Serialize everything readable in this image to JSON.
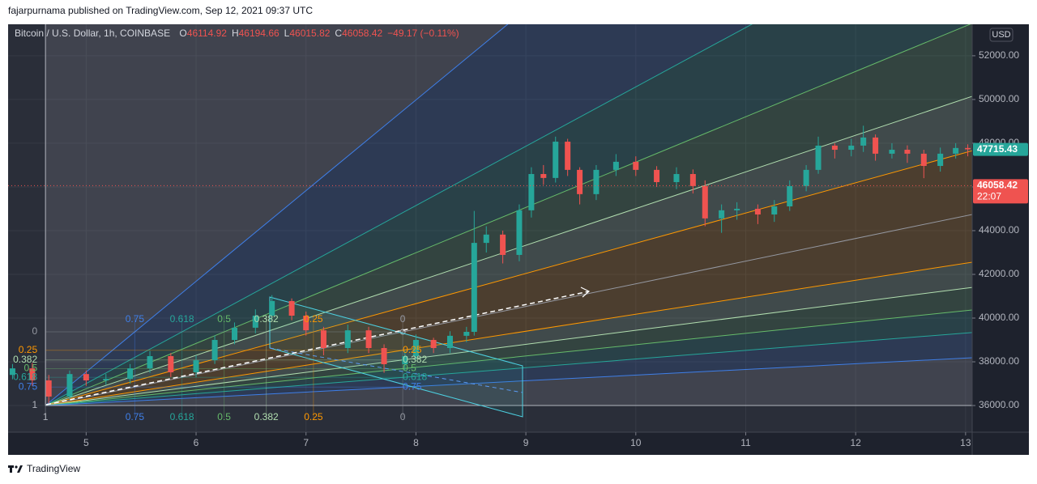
{
  "header": {
    "publisher": "fajarpurnama published on TradingView.com, Sep 12, 2021 09:37 UTC"
  },
  "chart_data": {
    "type": "candlestick",
    "symbol": "Bitcoin / U.S. Dollar, 1h, COINBASE",
    "ohlc_legend": [
      {
        "label": "O",
        "value": 46114.92
      },
      {
        "label": "H",
        "value": 46194.66
      },
      {
        "label": "L",
        "value": 46015.82
      },
      {
        "label": "C",
        "value": 46058.42
      }
    ],
    "change": "−49.17 (−0.11%)",
    "currency": "USD",
    "up_color": "#26a69a",
    "down_color": "#ef5350",
    "x": [
      4.33,
      4.51,
      4.66,
      4.85,
      5.0,
      5.18,
      5.4,
      5.58,
      5.77,
      6.0,
      6.17,
      6.35,
      6.54,
      6.69,
      6.87,
      7.0,
      7.16,
      7.38,
      7.57,
      7.71,
      7.9,
      8.0,
      8.16,
      8.31,
      8.46,
      8.53,
      8.64,
      8.79,
      8.94,
      9.05,
      9.16,
      9.27,
      9.38,
      9.49,
      9.64,
      9.82,
      10.0,
      10.19,
      10.37,
      10.52,
      10.63,
      10.78,
      10.92,
      11.11,
      11.26,
      11.4,
      11.55,
      11.66,
      11.81,
      11.96,
      12.07,
      12.18,
      12.33,
      12.47,
      12.62,
      12.77,
      12.91,
      13.02
    ],
    "open": [
      37400,
      37700,
      37150,
      36410,
      37440,
      37150,
      37220,
      37700,
      38260,
      37520,
      38070,
      39000,
      39560,
      40110,
      40780,
      40110,
      39440,
      38630,
      39440,
      38630,
      37890,
      38260,
      39000,
      38630,
      39190,
      39370,
      43440,
      43820,
      42890,
      44930,
      46590,
      46410,
      48070,
      46780,
      45670,
      46780,
      47150,
      46780,
      46220,
      46590,
      46040,
      44560,
      44930,
      45000,
      44740,
      45110,
      46040,
      46780,
      47890,
      47700,
      47890,
      48260,
      47520,
      47700,
      47520,
      46960,
      47520,
      47780
    ],
    "high": [
      37900,
      37950,
      37400,
      37600,
      37600,
      37450,
      37900,
      38500,
      38400,
      38300,
      39200,
      39800,
      40400,
      41050,
      40900,
      40300,
      39600,
      39700,
      39600,
      38800,
      38500,
      39250,
      39100,
      39400,
      39600,
      44900,
      44200,
      44000,
      45200,
      46900,
      47000,
      48300,
      48200,
      46900,
      47000,
      47500,
      47400,
      46950,
      46900,
      46800,
      46300,
      45200,
      45300,
      45200,
      45400,
      46300,
      47000,
      48300,
      48000,
      48200,
      48800,
      48400,
      48000,
      47900,
      47700,
      47800,
      48000,
      47950
    ],
    "low": [
      37200,
      36900,
      36100,
      36300,
      36900,
      36950,
      37000,
      37500,
      37300,
      37300,
      37900,
      38800,
      39300,
      39900,
      39900,
      39200,
      38300,
      38400,
      38400,
      37500,
      37600,
      38100,
      38400,
      38400,
      38900,
      39200,
      43000,
      42500,
      42600,
      44600,
      46100,
      46200,
      46500,
      45200,
      45400,
      46500,
      46500,
      46000,
      45900,
      45700,
      44200,
      43900,
      44500,
      44300,
      44400,
      44900,
      45800,
      46600,
      47300,
      47400,
      47600,
      47200,
      47300,
      47100,
      46400,
      46700,
      47300,
      47400
    ],
    "close": [
      37700,
      37150,
      36410,
      37440,
      37150,
      37220,
      37700,
      38260,
      37520,
      38070,
      39000,
      39560,
      40110,
      40780,
      40110,
      39440,
      38630,
      39440,
      38630,
      37890,
      38260,
      39000,
      38630,
      39190,
      39370,
      43440,
      43820,
      42890,
      44930,
      46590,
      46410,
      48070,
      46780,
      45670,
      46780,
      47150,
      46780,
      46220,
      46590,
      46040,
      44560,
      44930,
      45000,
      44740,
      45110,
      46040,
      46780,
      47890,
      47700,
      47890,
      48260,
      47520,
      47700,
      47520,
      46960,
      47520,
      47780,
      47720
    ],
    "xlim": [
      4.29,
      13.06
    ],
    "xticks": [
      5,
      6,
      7,
      8,
      9,
      10,
      11,
      12,
      13
    ],
    "ylim": [
      34780,
      53440
    ],
    "yticks": [
      {
        "value": 36000,
        "label": "36000.00"
      },
      {
        "value": 38000,
        "label": "38000.00"
      },
      {
        "value": 40000,
        "label": "40000.00"
      },
      {
        "value": 42000,
        "label": "42000.00"
      },
      {
        "value": 44000,
        "label": "44000.00"
      },
      {
        "value": 46000,
        "label": "46000.00"
      },
      {
        "value": 48000,
        "label": "48000.00"
      },
      {
        "value": 50000,
        "label": "50000.00"
      },
      {
        "value": 52000,
        "label": "52000.00"
      }
    ],
    "grid": true,
    "price_labels": [
      {
        "value": 47715.43,
        "color": "#26a69a"
      },
      {
        "value": 46058.42,
        "countdown": "22:07",
        "color": "#ef5350",
        "line": true
      }
    ],
    "fib_fan": {
      "start": {
        "x": 4.63,
        "y": 36000
      },
      "end": {
        "x": 7.88,
        "y": 39370
      },
      "levels": [
        {
          "level": 0,
          "color": "#9598a1"
        },
        {
          "level": 0.25,
          "color": "#ff9800"
        },
        {
          "level": 0.382,
          "color": "#b2dfb0"
        },
        {
          "level": 0.5,
          "color": "#66bb6a"
        },
        {
          "level": 0.618,
          "color": "#26a69a"
        },
        {
          "level": 0.75,
          "color": "#3f7fe8"
        },
        {
          "level": 1,
          "color": "#b2b5be"
        }
      ]
    }
  },
  "footer": {
    "brand": "TradingView"
  }
}
